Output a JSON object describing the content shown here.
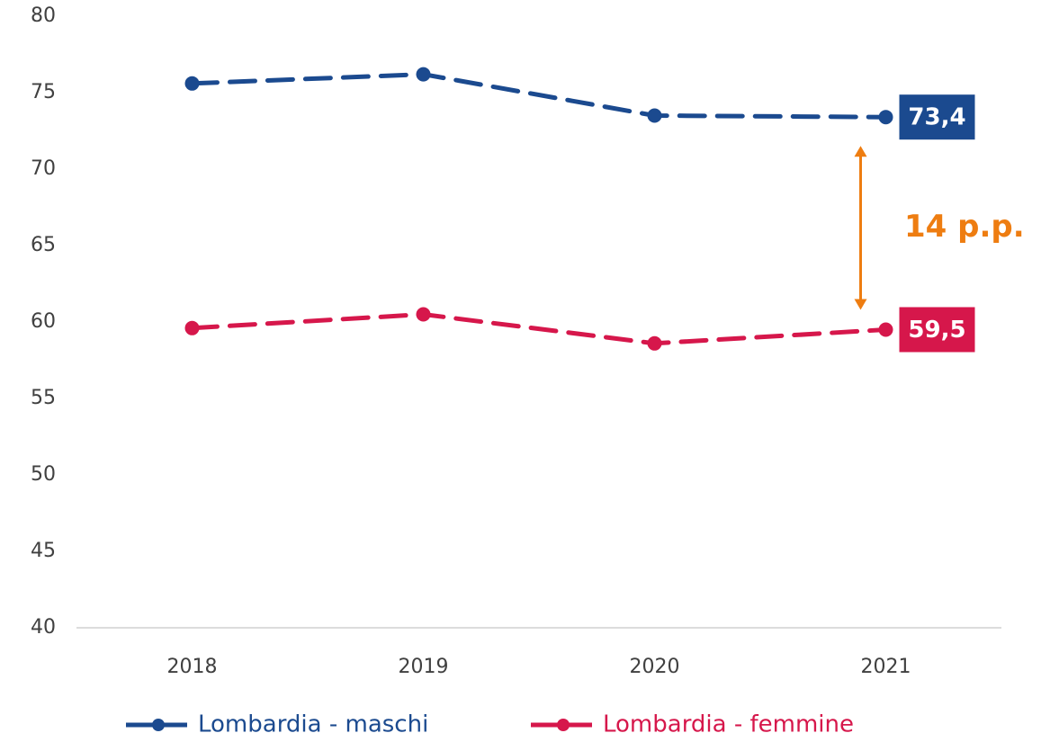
{
  "chart_data": {
    "type": "line",
    "categories": [
      "2018",
      "2019",
      "2020",
      "2021"
    ],
    "series": [
      {
        "name": "Lombardia - maschi",
        "color": "#1b4a8f",
        "values": [
          75.6,
          76.2,
          73.5,
          73.4
        ],
        "value_labels": [
          null,
          null,
          null,
          "73,4"
        ]
      },
      {
        "name": "Lombardia - femmine",
        "color": "#d6174b",
        "values": [
          59.6,
          60.5,
          58.6,
          59.5
        ],
        "value_labels": [
          null,
          null,
          null,
          "59,5"
        ]
      }
    ],
    "ylim": [
      40,
      80
    ],
    "yticks": [
      40,
      45,
      50,
      55,
      60,
      65,
      70,
      75,
      80
    ],
    "grid": false,
    "annotation": {
      "text": "14 p.p.",
      "color": "#ee7d11"
    },
    "legend": "bottom"
  }
}
